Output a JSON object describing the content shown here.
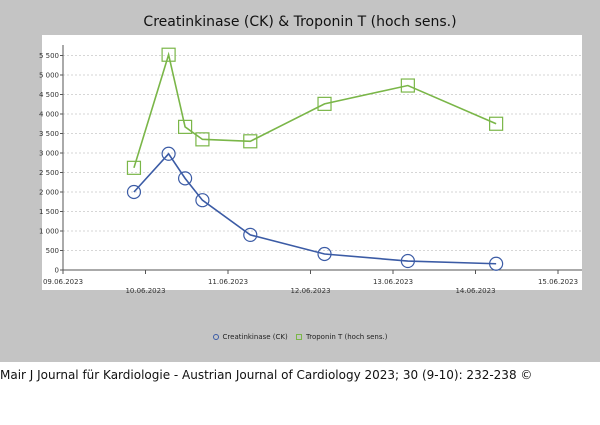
{
  "chart_data": {
    "type": "line",
    "title": "Creatinkinase (CK) & Troponin T (hoch sens.)",
    "xlabel": "",
    "ylabel": "",
    "ylim": [
      0,
      5750
    ],
    "yticks": [
      {
        "value": 0,
        "label": "0"
      },
      {
        "value": 500,
        "label": "500"
      },
      {
        "value": 1000,
        "label": "1 000"
      },
      {
        "value": 1500,
        "label": "1 500"
      },
      {
        "value": 2000,
        "label": "2 000"
      },
      {
        "value": 2500,
        "label": "2 500"
      },
      {
        "value": 3000,
        "label": "3 000"
      },
      {
        "value": 3500,
        "label": "3 500"
      },
      {
        "value": 4000,
        "label": "4 000"
      },
      {
        "value": 4500,
        "label": "4 500"
      },
      {
        "value": 5000,
        "label": "5 000"
      },
      {
        "value": 5500,
        "label": "5 500"
      }
    ],
    "xlim": [
      0,
      6.1
    ],
    "xticks": [
      {
        "day": 0,
        "label": "09.06.2023",
        "row": "upper"
      },
      {
        "day": 1,
        "label": "10.06.2023",
        "row": "lower"
      },
      {
        "day": 2,
        "label": "11.06.2023",
        "row": "upper"
      },
      {
        "day": 3,
        "label": "12.06.2023",
        "row": "lower"
      },
      {
        "day": 4,
        "label": "13.06.2023",
        "row": "upper"
      },
      {
        "day": 5,
        "label": "14.06.2023",
        "row": "lower"
      },
      {
        "day": 6,
        "label": "15.06.2023",
        "row": "upper"
      }
    ],
    "grid": true,
    "legend_position": "bottom-center",
    "series": [
      {
        "name": "Creatinkinase (CK)",
        "color": "#3b5ba5",
        "marker": "circle",
        "points": [
          {
            "day": 0.86,
            "value": 2000
          },
          {
            "day": 1.28,
            "value": 2980
          },
          {
            "day": 1.48,
            "value": 2350
          },
          {
            "day": 1.69,
            "value": 1790
          },
          {
            "day": 2.27,
            "value": 900
          },
          {
            "day": 3.17,
            "value": 410
          },
          {
            "day": 4.18,
            "value": 230
          },
          {
            "day": 5.25,
            "value": 160
          }
        ]
      },
      {
        "name": "Troponin T (hoch sens.)",
        "color": "#7ab648",
        "marker": "square",
        "points": [
          {
            "day": 0.86,
            "value": 2620
          },
          {
            "day": 1.28,
            "value": 5520
          },
          {
            "day": 1.48,
            "value": 3670
          },
          {
            "day": 1.69,
            "value": 3350
          },
          {
            "day": 2.27,
            "value": 3300
          },
          {
            "day": 3.17,
            "value": 4260
          },
          {
            "day": 4.18,
            "value": 4730
          },
          {
            "day": 5.25,
            "value": 3750
          }
        ]
      }
    ]
  },
  "citation": "Mair J Journal für Kardiologie - Austrian Journal of Cardiology 2023; 30 (9-10): 232-238 ©",
  "colors": {
    "panel_background": "#c4c4c4",
    "plot_background": "#ffffff",
    "ck": "#3b5ba5",
    "troponin": "#7ab648"
  }
}
